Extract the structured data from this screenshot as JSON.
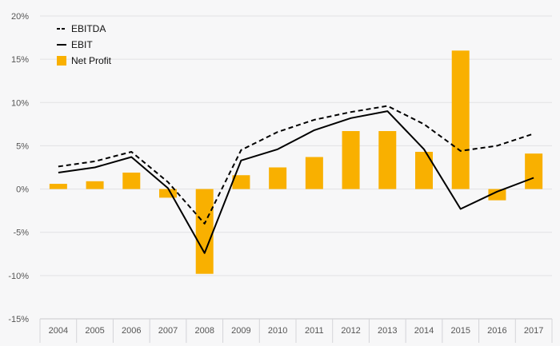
{
  "chart_data": {
    "type": "bar",
    "categories": [
      "2004",
      "2005",
      "2006",
      "2007",
      "2008",
      "2009",
      "2010",
      "2011",
      "2012",
      "2013",
      "2014",
      "2015",
      "2016",
      "2017"
    ],
    "series": [
      {
        "name": "EBITDA",
        "type": "line",
        "style": "dashed",
        "color": "#000000",
        "values": [
          2.6,
          3.2,
          4.3,
          0.8,
          -4.0,
          4.5,
          6.6,
          8.0,
          8.9,
          9.6,
          7.5,
          4.4,
          5.0,
          6.4
        ]
      },
      {
        "name": "EBIT",
        "type": "line",
        "style": "solid",
        "color": "#000000",
        "values": [
          1.9,
          2.5,
          3.7,
          0.1,
          -7.4,
          3.3,
          4.6,
          6.8,
          8.2,
          9.0,
          4.6,
          -2.3,
          -0.3,
          1.3
        ]
      },
      {
        "name": "Net Profit",
        "type": "bar",
        "color": "#F9B000",
        "values": [
          0.6,
          0.9,
          1.9,
          -1.0,
          -9.8,
          1.6,
          2.5,
          3.7,
          6.7,
          6.7,
          4.3,
          16.0,
          -1.3,
          4.1
        ]
      }
    ],
    "ylim": [
      -15,
      20
    ],
    "yticks": [
      "-15%",
      "-10%",
      "-5%",
      "0%",
      "5%",
      "10%",
      "15%",
      "20%"
    ],
    "ytick_values": [
      -15,
      -10,
      -5,
      0,
      5,
      10,
      15,
      20
    ],
    "grid": true,
    "legend_position": "top-left",
    "title": "",
    "xlabel": "",
    "ylabel": ""
  }
}
